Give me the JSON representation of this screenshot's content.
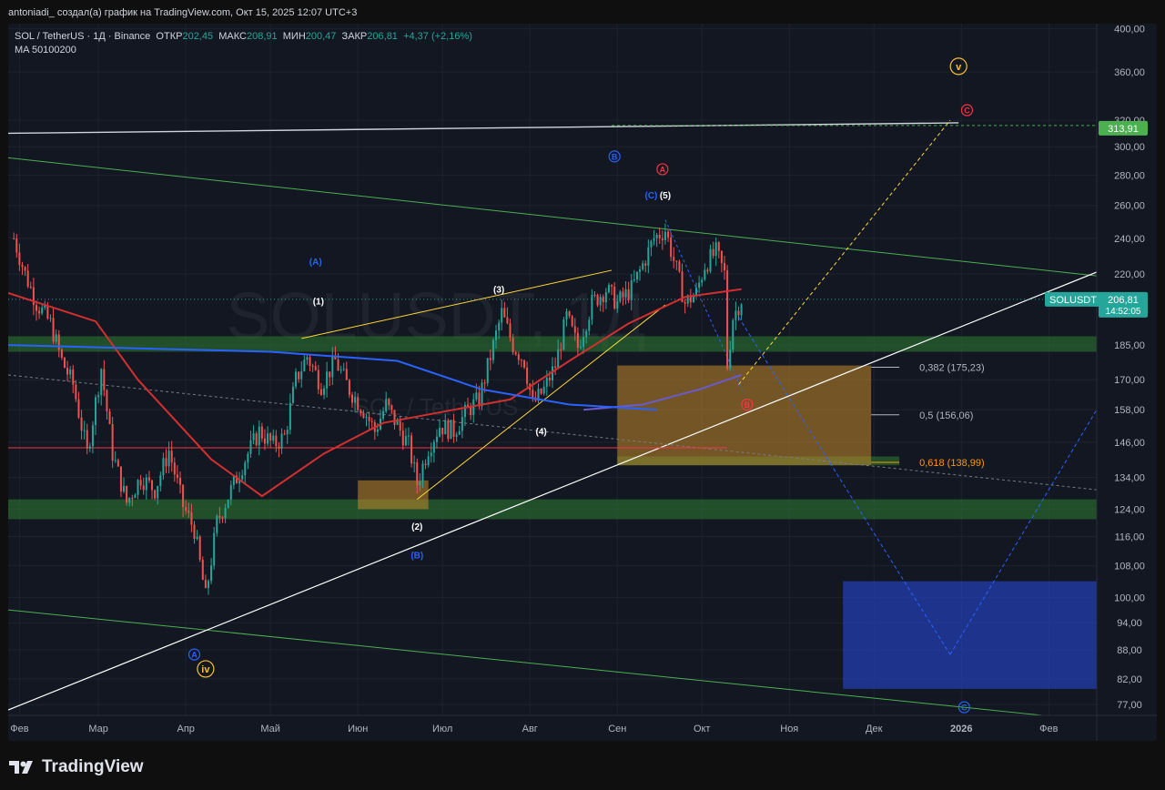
{
  "header": {
    "attribution": "antoniadi_ создал(а) график на TradingView.com, Окт 15, 2025 12:07 UTC+3"
  },
  "legend": {
    "symbol": "SOL / TetherUS · 1Д · Binance",
    "open_label": "ОТКР",
    "open": "202,45",
    "high_label": "МАКС",
    "high": "208,91",
    "low_label": "МИН",
    "low": "200,47",
    "close_label": "ЗАКР",
    "close": "206,81",
    "change": "+4,37 (+2,16%)",
    "ma": "MA 50100200"
  },
  "watermark": {
    "symbol": "SOLUSDT, 1Д",
    "name": "SOL / TetherUS"
  },
  "footer": {
    "brand": "TradingView"
  },
  "chart_data": {
    "type": "candlestick",
    "symbol": "SOLUSDT",
    "interval": "1Д",
    "exchange": "Binance",
    "y_scale": "log",
    "y_range": [
      75,
      405
    ],
    "y_ticks": [
      77,
      82,
      88,
      94,
      100,
      108,
      116,
      124,
      134,
      146,
      158,
      170,
      185,
      220,
      240,
      260,
      280,
      300,
      320,
      360,
      400
    ],
    "y_tick_labels": [
      "77,00",
      "82,00",
      "88,00",
      "94,00",
      "100,00",
      "108,00",
      "116,00",
      "124,00",
      "134,00",
      "146,00",
      "158,00",
      "170,00",
      "185,00",
      "220,00",
      "240,00",
      "260,00",
      "280,00",
      "300,00",
      "320,00",
      "360,00",
      "400,00"
    ],
    "x_range": [
      "2025-01-28",
      "2026-02-18"
    ],
    "x_ticks": [
      {
        "date": "2025-02-01",
        "label": "Фев"
      },
      {
        "date": "2025-03-01",
        "label": "Мар"
      },
      {
        "date": "2025-04-01",
        "label": "Апр"
      },
      {
        "date": "2025-05-01",
        "label": "Май"
      },
      {
        "date": "2025-06-01",
        "label": "Июн"
      },
      {
        "date": "2025-07-01",
        "label": "Июл"
      },
      {
        "date": "2025-08-01",
        "label": "Авг"
      },
      {
        "date": "2025-09-01",
        "label": "Сен"
      },
      {
        "date": "2025-10-01",
        "label": "Окт"
      },
      {
        "date": "2025-11-01",
        "label": "Ноя"
      },
      {
        "date": "2025-12-01",
        "label": "Дек"
      },
      {
        "date": "2026-01-01",
        "label": "2026"
      },
      {
        "date": "2026-02-01",
        "label": "Фев"
      }
    ],
    "price_path": [
      [
        "2025-01-30",
        240
      ],
      [
        "2025-02-03",
        220
      ],
      [
        "2025-02-07",
        205
      ],
      [
        "2025-02-12",
        195
      ],
      [
        "2025-02-16",
        178
      ],
      [
        "2025-02-20",
        168
      ],
      [
        "2025-02-25",
        142
      ],
      [
        "2025-03-02",
        175
      ],
      [
        "2025-03-06",
        142
      ],
      [
        "2025-03-11",
        126
      ],
      [
        "2025-03-16",
        134
      ],
      [
        "2025-03-21",
        130
      ],
      [
        "2025-03-26",
        143
      ],
      [
        "2025-03-31",
        125
      ],
      [
        "2025-04-04",
        118
      ],
      [
        "2025-04-08",
        100
      ],
      [
        "2025-04-12",
        120
      ],
      [
        "2025-04-16",
        128
      ],
      [
        "2025-04-22",
        140
      ],
      [
        "2025-04-27",
        150
      ],
      [
        "2025-05-02",
        145
      ],
      [
        "2025-05-06",
        148
      ],
      [
        "2025-05-10",
        170
      ],
      [
        "2025-05-14",
        180
      ],
      [
        "2025-05-19",
        168
      ],
      [
        "2025-05-24",
        178
      ],
      [
        "2025-05-29",
        166
      ],
      [
        "2025-06-03",
        158
      ],
      [
        "2025-06-07",
        150
      ],
      [
        "2025-06-11",
        160
      ],
      [
        "2025-06-15",
        152
      ],
      [
        "2025-06-19",
        145
      ],
      [
        "2025-06-22",
        132
      ],
      [
        "2025-06-26",
        144
      ],
      [
        "2025-06-30",
        152
      ],
      [
        "2025-07-05",
        150
      ],
      [
        "2025-07-10",
        158
      ],
      [
        "2025-07-14",
        162
      ],
      [
        "2025-07-18",
        180
      ],
      [
        "2025-07-22",
        200
      ],
      [
        "2025-07-26",
        185
      ],
      [
        "2025-07-30",
        178
      ],
      [
        "2025-08-02",
        160
      ],
      [
        "2025-08-06",
        166
      ],
      [
        "2025-08-10",
        176
      ],
      [
        "2025-08-14",
        198
      ],
      [
        "2025-08-18",
        184
      ],
      [
        "2025-08-23",
        205
      ],
      [
        "2025-08-28",
        212
      ],
      [
        "2025-09-01",
        205
      ],
      [
        "2025-09-06",
        212
      ],
      [
        "2025-09-10",
        225
      ],
      [
        "2025-09-14",
        240
      ],
      [
        "2025-09-18",
        245
      ],
      [
        "2025-09-22",
        222
      ],
      [
        "2025-09-25",
        205
      ],
      [
        "2025-09-29",
        210
      ],
      [
        "2025-10-02",
        225
      ],
      [
        "2025-10-06",
        232
      ],
      [
        "2025-10-09",
        220
      ],
      [
        "2025-10-10",
        176
      ],
      [
        "2025-10-12",
        198
      ],
      [
        "2025-10-14",
        204
      ],
      [
        "2025-10-15",
        206.81
      ]
    ],
    "moving_averages": [
      {
        "name": "MA 50",
        "color": "#d32f2f",
        "points": [
          [
            "2025-01-28",
            210
          ],
          [
            "2025-02-28",
            196
          ],
          [
            "2025-03-15",
            170
          ],
          [
            "2025-04-10",
            140
          ],
          [
            "2025-04-28",
            128
          ],
          [
            "2025-05-20",
            142
          ],
          [
            "2025-06-10",
            153
          ],
          [
            "2025-07-05",
            158
          ],
          [
            "2025-07-25",
            162
          ],
          [
            "2025-08-15",
            178
          ],
          [
            "2025-09-05",
            195
          ],
          [
            "2025-09-25",
            208
          ],
          [
            "2025-10-15",
            212
          ]
        ]
      },
      {
        "name": "MA 100",
        "color": "#6a5acd",
        "points": [
          [
            "2025-08-20",
            158
          ],
          [
            "2025-09-10",
            160
          ],
          [
            "2025-09-30",
            166
          ],
          [
            "2025-10-15",
            172
          ]
        ]
      },
      {
        "name": "MA 200",
        "color": "#2962ff",
        "points": [
          [
            "2025-01-28",
            185
          ],
          [
            "2025-03-01",
            184
          ],
          [
            "2025-05-01",
            182
          ],
          [
            "2025-06-15",
            178
          ],
          [
            "2025-07-15",
            166
          ],
          [
            "2025-08-15",
            160
          ],
          [
            "2025-09-15",
            158
          ]
        ]
      }
    ],
    "last_price": {
      "label": "SOLUSDT",
      "price": "206,81",
      "countdown": "14:52:05"
    },
    "target_price": {
      "price": "313,91"
    },
    "fibonacci": [
      {
        "ratio": "0,382",
        "price": 175.23,
        "label": "0,382 (175,23)"
      },
      {
        "ratio": "0,5",
        "price": 156.06,
        "label": "0,5 (156,06)"
      },
      {
        "ratio": "0,618",
        "price": 138.99,
        "label": "0,618 (138,99)"
      }
    ],
    "zones": [
      {
        "name": "support-upper",
        "from": "2025-01-28",
        "to": "2026-02-18",
        "low": 182,
        "high": 189,
        "color": "#2e7d32"
      },
      {
        "name": "support-lower",
        "from": "2025-01-28",
        "to": "2026-02-18",
        "low": 121,
        "high": 127,
        "color": "#2e7d32"
      },
      {
        "name": "fib-band",
        "from": "2025-09-01",
        "to": "2025-12-10",
        "low": 138,
        "high": 141,
        "color": "#2e7d32"
      },
      {
        "name": "fib-box",
        "from": "2025-09-01",
        "to": "2025-11-30",
        "low": 138,
        "high": 176,
        "color": "#ff9800"
      },
      {
        "name": "june-box",
        "from": "2025-06-01",
        "to": "2025-06-26",
        "low": 124,
        "high": 133,
        "color": "#ff9800"
      },
      {
        "name": "target-box",
        "from": "2025-11-20",
        "to": "2026-02-18",
        "low": 80,
        "high": 104,
        "color": "#2962ff"
      }
    ],
    "wave_labels": [
      {
        "text": "(1)",
        "date": "2025-05-18",
        "price": 206,
        "color": "#ffffff"
      },
      {
        "text": "(2)",
        "date": "2025-06-22",
        "price": 119,
        "color": "#ffffff"
      },
      {
        "text": "(3)",
        "date": "2025-07-21",
        "price": 212,
        "color": "#ffffff"
      },
      {
        "text": "(4)",
        "date": "2025-08-05",
        "price": 150,
        "color": "#ffffff"
      },
      {
        "text": "(5)",
        "date": "2025-09-18",
        "price": 267,
        "color": "#ffffff"
      },
      {
        "text": "(A)",
        "date": "2025-05-17",
        "price": 227,
        "color": "#2962ff"
      },
      {
        "text": "(B)",
        "date": "2025-06-22",
        "price": 111,
        "color": "#2962ff"
      },
      {
        "text": "(C)",
        "date": "2025-09-13",
        "price": 267,
        "color": "#2962ff"
      },
      {
        "text": "A",
        "date": "2025-04-04",
        "price": 87,
        "color": "#2962ff",
        "circled": true
      },
      {
        "text": "B",
        "date": "2025-08-31",
        "price": 293,
        "color": "#2962ff",
        "circled": true
      },
      {
        "text": "C",
        "date": "2026-01-02",
        "price": 76.5,
        "color": "#2962ff",
        "circled": true
      },
      {
        "text": "A",
        "date": "2025-09-17",
        "price": 284,
        "color": "#f23645",
        "circled": true
      },
      {
        "text": "B",
        "date": "2025-10-17",
        "price": 160,
        "color": "#f23645",
        "circled": true
      },
      {
        "text": "C",
        "date": "2026-01-03",
        "price": 328,
        "color": "#f23645",
        "circled": true
      },
      {
        "text": "iv",
        "date": "2025-04-08",
        "price": 84,
        "color": "#fbc02d",
        "circled": true
      },
      {
        "text": "v",
        "date": "2025-12-31",
        "price": 365,
        "color": "#fbc02d",
        "circled": true
      }
    ]
  }
}
